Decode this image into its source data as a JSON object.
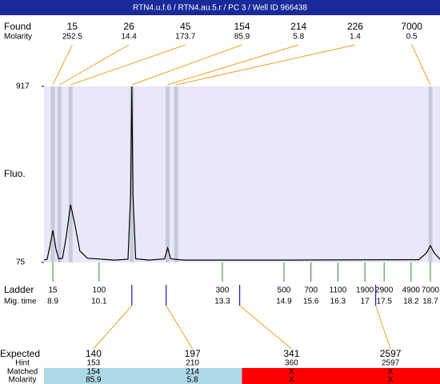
{
  "header": {
    "title": "RTN4.u.f.6 / RTN4.au.5.r / PC 3 / Well ID 966438"
  },
  "chart_data": {
    "type": "line",
    "ylabel": "Fluo.",
    "ylim": [
      75,
      917
    ],
    "yticks": [
      75,
      917
    ],
    "xlim": [
      8.67,
      18.95
    ],
    "x": [
      8.67,
      8.75,
      8.82,
      8.9,
      8.98,
      9.05,
      9.15,
      9.25,
      9.36,
      9.47,
      9.6,
      9.8,
      10.5,
      10.85,
      10.92,
      10.95,
      10.98,
      11.05,
      11.4,
      11.8,
      11.88,
      11.96,
      12.3,
      15,
      18.4,
      18.6,
      18.7,
      18.8,
      18.95
    ],
    "series": [
      {
        "color": "#000000",
        "values": [
          86,
          90,
          150,
          228,
          140,
          92,
          95,
          200,
          351,
          260,
          130,
          95,
          86,
          90,
          400,
          917,
          400,
          92,
          86,
          92,
          144,
          92,
          86,
          86,
          88,
          120,
          155,
          120,
          90
        ]
      }
    ],
    "band_color": "#c9c9dc",
    "plot_color": "#e8e8f8"
  },
  "found": {
    "label": "Found",
    "sublabel": "Molarity",
    "line_color": "#f0a020",
    "peaks": [
      {
        "size": 15,
        "molarity": 252.5,
        "mig_time": 8.9
      },
      {
        "size": 26,
        "molarity": 14.4,
        "mig_time": 9.07
      },
      {
        "size": 45,
        "molarity": 173.7,
        "mig_time": 9.36
      },
      {
        "size": 154,
        "molarity": 85.9,
        "mig_time": 10.95
      },
      {
        "size": 214,
        "molarity": 5.8,
        "mig_time": 11.88
      },
      {
        "size": 226,
        "molarity": 1.4,
        "mig_time": 12.1
      },
      {
        "size": 7000,
        "molarity": 0.5,
        "mig_time": 18.7
      }
    ]
  },
  "ladder": {
    "label": "Ladder",
    "sublabel": "Mig. time",
    "color": "#2a8a2a",
    "sizes": [
      15,
      100,
      300,
      500,
      700,
      1100,
      1900,
      2900,
      4900,
      7000
    ],
    "mig_times": [
      8.9,
      10.1,
      13.3,
      14.9,
      15.6,
      16.3,
      17,
      17.5,
      18.2,
      18.7
    ]
  },
  "expected": {
    "label": "Expected",
    "hint_label": "Hint",
    "matched_label": "Matched",
    "molarity_label": "Molarity",
    "mark_color": "#1a1acc",
    "items": [
      {
        "size": 140,
        "mig_time": 10.95,
        "hint": 153,
        "matched": 154,
        "molarity": 85.9,
        "color": "#add8e6"
      },
      {
        "size": 197,
        "mig_time": 11.84,
        "hint": 210,
        "matched": 214,
        "molarity": 5.8,
        "color": "#add8e6"
      },
      {
        "size": 341,
        "mig_time": 13.75,
        "hint": 360,
        "matched": "X",
        "molarity": "X",
        "color": "#ff0000"
      },
      {
        "size": 2597,
        "mig_time": 17.28,
        "hint": 2597,
        "matched": "X",
        "molarity": "X",
        "color": "#ff0000"
      }
    ]
  }
}
